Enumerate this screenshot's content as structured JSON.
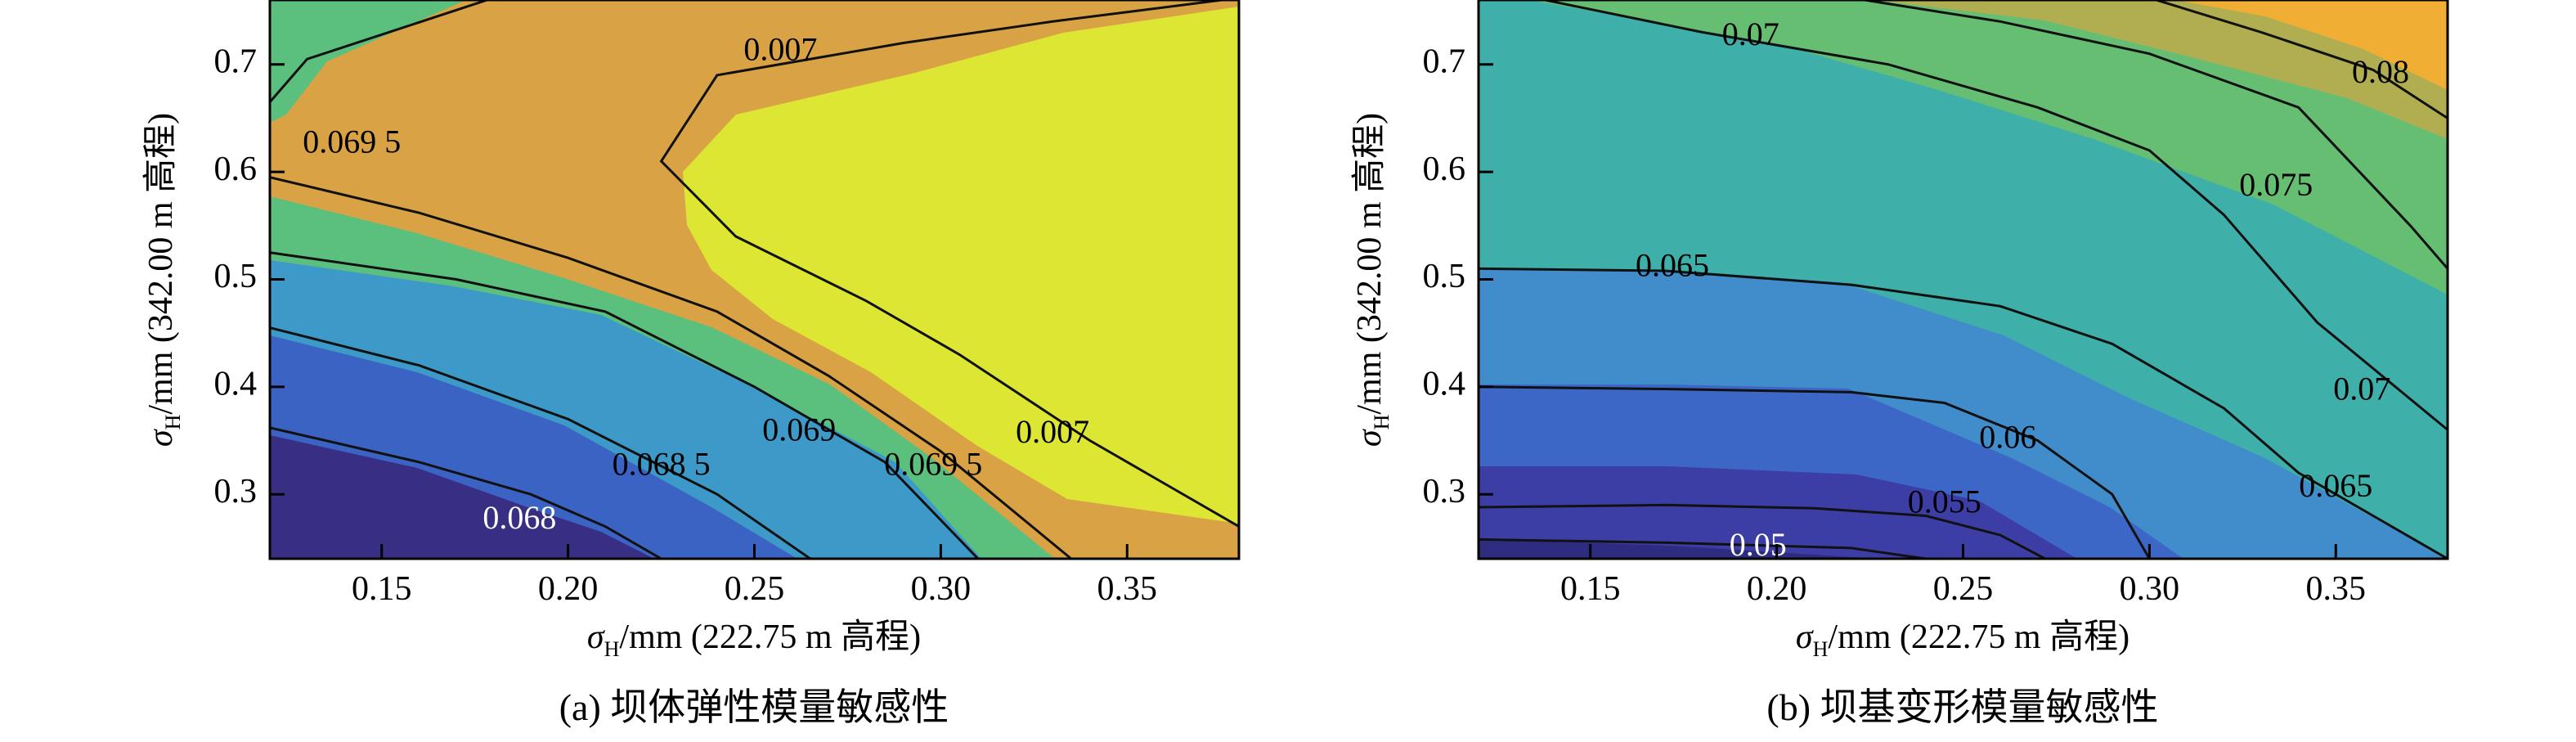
{
  "chart_data": [
    {
      "type": "contour",
      "caption": "(a) 坝体弹性模量敏感性",
      "xlabel": "σH/mm (222.75 m 高程)",
      "ylabel": "σH/mm (342.00 m 高程)",
      "xlim": [
        0.12,
        0.38
      ],
      "ylim": [
        0.24,
        0.76
      ],
      "xticks": [
        "0.15",
        "0.20",
        "0.25",
        "0.30",
        "0.35"
      ],
      "yticks": [
        "0.3",
        "0.4",
        "0.5",
        "0.6",
        "0.7"
      ],
      "colors": [
        "#382f84",
        "#3a63c4",
        "#3d9ac8",
        "#5bbf7d",
        "#d9a245",
        "#dde632"
      ],
      "contours": [
        {
          "level": "0.068",
          "label": "0.068",
          "points": [
            [
              0.12,
              0.362
            ],
            [
              0.16,
              0.33
            ],
            [
              0.19,
              0.3
            ],
            [
              0.21,
              0.27
            ],
            [
              0.225,
              0.24
            ]
          ],
          "label_at": [
            0.187,
            0.275
          ]
        },
        {
          "level": "0.068 5",
          "label": "0.068 5",
          "points": [
            [
              0.12,
              0.455
            ],
            [
              0.16,
              0.42
            ],
            [
              0.2,
              0.37
            ],
            [
              0.24,
              0.3
            ],
            [
              0.265,
              0.24
            ]
          ],
          "label_at": [
            0.225,
            0.325
          ]
        },
        {
          "level": "0.069",
          "label": "0.069",
          "points": [
            [
              0.12,
              0.525
            ],
            [
              0.17,
              0.5
            ],
            [
              0.21,
              0.47
            ],
            [
              0.25,
              0.4
            ],
            [
              0.285,
              0.33
            ],
            [
              0.31,
              0.24
            ]
          ],
          "label_at": [
            0.262,
            0.357
          ]
        },
        {
          "level": "0.069 5",
          "label": "0.069 5",
          "points": [
            [
              0.12,
              0.665
            ],
            [
              0.13,
              0.705
            ],
            [
              0.18,
              0.762
            ]
          ],
          "label_at": [
            0.142,
            0.625
          ]
        },
        {
          "level": "0.069 5",
          "label": "0.069 5",
          "points": [
            [
              0.12,
              0.595
            ],
            [
              0.16,
              0.562
            ],
            [
              0.2,
              0.52
            ],
            [
              0.24,
              0.47
            ],
            [
              0.27,
              0.41
            ],
            [
              0.3,
              0.34
            ],
            [
              0.335,
              0.24
            ]
          ],
          "label_at": [
            0.298,
            0.325
          ]
        },
        {
          "level": "0.007",
          "label": "0.007",
          "points": [
            [
              0.38,
              0.762
            ],
            [
              0.33,
              0.74
            ],
            [
              0.29,
              0.72
            ],
            [
              0.24,
              0.69
            ],
            [
              0.225,
              0.61
            ],
            [
              0.245,
              0.54
            ],
            [
              0.28,
              0.48
            ],
            [
              0.305,
              0.43
            ],
            [
              0.34,
              0.35
            ],
            [
              0.38,
              0.27
            ]
          ],
          "label_at": [
            0.257,
            0.711
          ],
          "label2_at": [
            0.33,
            0.355
          ]
        }
      ]
    },
    {
      "type": "contour",
      "caption": "(b) 坝基变形模量敏感性",
      "xlabel": "σH/mm (222.75 m 高程)",
      "ylabel": "σH/mm (342.00 m 高程)",
      "xlim": [
        0.12,
        0.38
      ],
      "ylim": [
        0.24,
        0.76
      ],
      "xticks": [
        "0.15",
        "0.20",
        "0.25",
        "0.30",
        "0.35"
      ],
      "yticks": [
        "0.3",
        "0.4",
        "0.5",
        "0.6",
        "0.7"
      ],
      "colors": [
        "#2e2c81",
        "#3c3ea6",
        "#3d67c6",
        "#418ccb",
        "#3fb0a9",
        "#66be72",
        "#b1ae51",
        "#f1ae34"
      ],
      "contours": [
        {
          "level": "0.05",
          "label": "0.05",
          "points": [
            [
              0.12,
              0.258
            ],
            [
              0.17,
              0.255
            ],
            [
              0.22,
              0.25
            ],
            [
              0.24,
              0.24
            ]
          ],
          "label_at": [
            0.195,
            0.25
          ]
        },
        {
          "level": "0.055",
          "label": "0.055",
          "points": [
            [
              0.12,
              0.288
            ],
            [
              0.17,
              0.29
            ],
            [
              0.21,
              0.287
            ],
            [
              0.24,
              0.28
            ],
            [
              0.26,
              0.262
            ],
            [
              0.272,
              0.24
            ]
          ],
          "label_at": [
            0.245,
            0.29
          ]
        },
        {
          "level": "0.06",
          "label": "0.06",
          "points": [
            [
              0.12,
              0.4
            ],
            [
              0.17,
              0.398
            ],
            [
              0.22,
              0.395
            ],
            [
              0.245,
              0.385
            ],
            [
              0.27,
              0.35
            ],
            [
              0.29,
              0.3
            ],
            [
              0.3,
              0.24
            ]
          ],
          "label_at": [
            0.262,
            0.35
          ]
        },
        {
          "level": "0.065",
          "label": "0.065",
          "points": [
            [
              0.12,
              0.51
            ],
            [
              0.17,
              0.508
            ],
            [
              0.22,
              0.495
            ],
            [
              0.26,
              0.475
            ],
            [
              0.29,
              0.44
            ],
            [
              0.32,
              0.38
            ],
            [
              0.34,
              0.32
            ],
            [
              0.38,
              0.24
            ]
          ],
          "label_at": [
            0.172,
            0.51
          ],
          "label2_at": [
            0.35,
            0.305
          ]
        },
        {
          "level": "0.07",
          "label": "0.07",
          "points": [
            [
              0.135,
              0.762
            ],
            [
              0.18,
              0.73
            ],
            [
              0.23,
              0.7
            ],
            [
              0.27,
              0.66
            ],
            [
              0.3,
              0.62
            ],
            [
              0.32,
              0.56
            ],
            [
              0.345,
              0.46
            ],
            [
              0.38,
              0.36
            ]
          ],
          "label_at": [
            0.193,
            0.725
          ],
          "label2_at": [
            0.357,
            0.395
          ]
        },
        {
          "level": "0.075",
          "label": "0.075",
          "points": [
            [
              0.22,
              0.762
            ],
            [
              0.26,
              0.74
            ],
            [
              0.3,
              0.71
            ],
            [
              0.34,
              0.66
            ],
            [
              0.37,
              0.55
            ],
            [
              0.38,
              0.51
            ]
          ],
          "label_at": [
            0.334,
            0.585
          ]
        },
        {
          "level": "0.08",
          "label": "0.08",
          "points": [
            [
              0.3,
              0.762
            ],
            [
              0.33,
              0.73
            ],
            [
              0.36,
              0.695
            ],
            [
              0.38,
              0.65
            ]
          ],
          "label_at": [
            0.362,
            0.69
          ]
        }
      ]
    }
  ]
}
